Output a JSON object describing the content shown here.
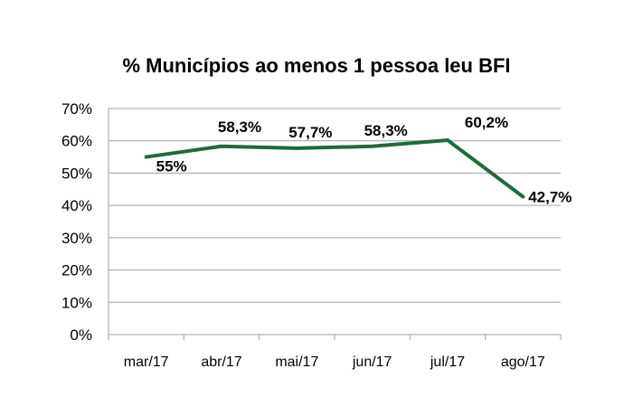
{
  "chart_data": {
    "type": "line",
    "title": "% Municípios ao menos 1 pessoa leu BFI",
    "xlabel": "",
    "ylabel": "",
    "categories": [
      "mar/17",
      "abr/17",
      "mai/17",
      "jun/17",
      "jul/17",
      "ago/17"
    ],
    "series": [
      {
        "values": [
          55,
          58.3,
          57.7,
          58.3,
          60.2,
          42.7
        ],
        "labels": [
          "55%",
          "58,3%",
          "57,7%",
          "58,3%",
          "60,2%",
          "42,7%"
        ]
      }
    ],
    "ylim": [
      0,
      70
    ],
    "yticks": [
      0,
      10,
      20,
      30,
      40,
      50,
      60,
      70
    ],
    "ytick_labels": [
      "0%",
      "10%",
      "20%",
      "30%",
      "40%",
      "50%",
      "60%",
      "70%"
    ],
    "grid": true,
    "legend": "none",
    "colors": {
      "line": "#1e6b3c",
      "grid": "#a0a0a0",
      "text": "#000000"
    }
  }
}
